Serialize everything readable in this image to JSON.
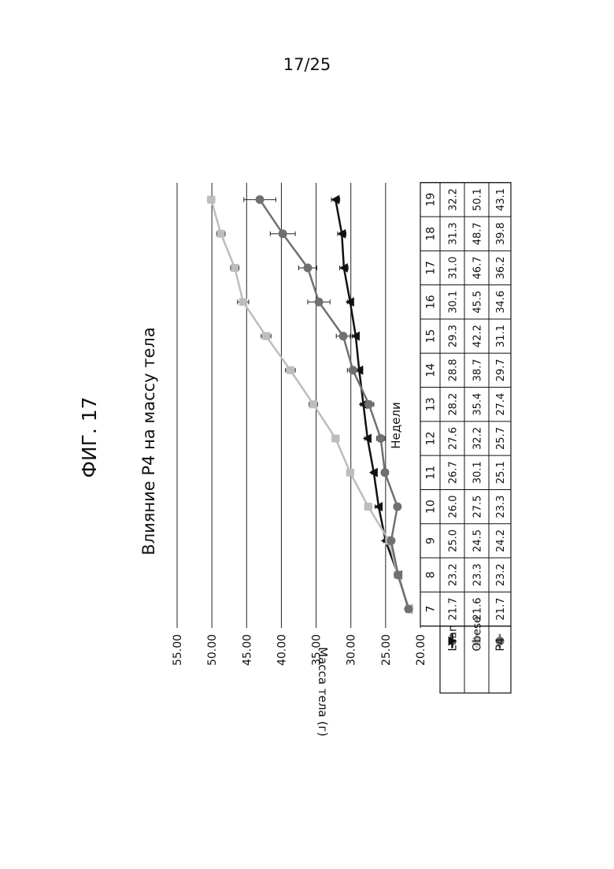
{
  "page_number": "17/25",
  "figure_label": "ФИГ. 17",
  "chart_data": {
    "type": "line",
    "title": "Влияние P4 на массу тела",
    "xlabel": "Недели",
    "ylabel": "Масса тела (г)",
    "ylim": [
      20,
      55
    ],
    "yticks": [
      "20.00",
      "25.00",
      "30.00",
      "35.00",
      "40.00",
      "45.00",
      "50.00",
      "55.00"
    ],
    "grid": true,
    "orientation": "rotated 90° counter-clockwise on page",
    "categories": [
      "7",
      "8",
      "9",
      "10",
      "11",
      "12",
      "13",
      "14",
      "15",
      "16",
      "17",
      "18",
      "19"
    ],
    "series": [
      {
        "name": "Lean",
        "color": "#111111",
        "marker": "triangle",
        "values": [
          21.7,
          23.2,
          25.0,
          26.0,
          26.7,
          27.6,
          28.2,
          28.8,
          29.3,
          30.1,
          31.0,
          31.3,
          32.2
        ],
        "labels": [
          "21.7",
          "23.2",
          "25.0",
          "26.0",
          "26.7",
          "27.6",
          "28.2",
          "28.8",
          "29.3",
          "30.1",
          "31.0",
          "31.3",
          "32.2"
        ],
        "error": [
          0,
          0.3,
          0.3,
          0.5,
          0.3,
          0.4,
          0.4,
          0.5,
          0.5,
          0.4,
          0.6,
          0.6,
          0.6
        ]
      },
      {
        "name": "Obese",
        "color": "#bdbdbd",
        "marker": "square",
        "values": [
          21.6,
          23.3,
          24.5,
          27.5,
          30.1,
          32.2,
          35.4,
          38.7,
          42.2,
          45.5,
          46.7,
          48.7,
          50.1
        ],
        "labels": [
          "21.6",
          "23.3",
          "24.5",
          "27.5",
          "30.1",
          "32.2",
          "35.4",
          "38.7",
          "42.2",
          "45.5",
          "46.7",
          "48.7",
          "50.1"
        ],
        "error": [
          0,
          0.3,
          0.3,
          0.5,
          0.5,
          0.5,
          0.6,
          0.7,
          0.7,
          0.8,
          0.6,
          0.6,
          0.5
        ]
      },
      {
        "name": "P4",
        "color": "#707070",
        "marker": "circle",
        "values": [
          21.7,
          23.2,
          24.2,
          23.3,
          25.1,
          25.7,
          27.4,
          29.7,
          31.1,
          34.6,
          36.2,
          39.8,
          43.1
        ],
        "labels": [
          "21.7",
          "23.2",
          "24.2",
          "23.3",
          "25.1",
          "25.7",
          "27.4",
          "29.7",
          "31.1",
          "34.6",
          "36.2",
          "39.8",
          "43.1"
        ],
        "error": [
          0,
          0.3,
          0.3,
          0.4,
          0.5,
          0.6,
          0.7,
          0.8,
          1.0,
          1.6,
          1.3,
          1.8,
          2.3
        ]
      }
    ]
  }
}
